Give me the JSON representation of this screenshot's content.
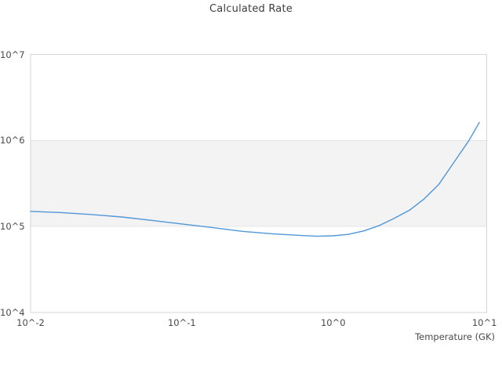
{
  "title": "Calculated Rate",
  "chart_data": {
    "type": "line",
    "title": "Calculated Rate",
    "xlabel": "Temperature (GK)",
    "ylabel": "",
    "x_scale": "log",
    "y_scale": "log",
    "xlim": [
      0.01,
      10.35
    ],
    "ylim": [
      10000,
      10000000
    ],
    "grid": "horizontal-decades",
    "legend": "none",
    "x_ticks": [
      {
        "value": 0.01,
        "label": "10^-2"
      },
      {
        "value": 0.1,
        "label": "10^-1"
      },
      {
        "value": 1,
        "label": "10^0"
      },
      {
        "value": 10,
        "label": "10^1"
      }
    ],
    "y_ticks": [
      {
        "value": 10000,
        "label": "10^4"
      },
      {
        "value": 100000,
        "label": "10^5"
      },
      {
        "value": 1000000,
        "label": "10^6"
      },
      {
        "value": 10000000,
        "label": "10^7"
      }
    ],
    "highlight_band": {
      "from": 100000,
      "to": 1000000,
      "fill": "#f3f3f3",
      "edge": "#e4e4e4"
    },
    "series": [
      {
        "name": "Calculated Rate",
        "color": "#4f97d9",
        "x": [
          0.01,
          0.016,
          0.025,
          0.04,
          0.063,
          0.1,
          0.16,
          0.25,
          0.4,
          0.63,
          0.79,
          1.0,
          1.26,
          1.6,
          2.0,
          2.5,
          3.2,
          4.0,
          5.0,
          6.3,
          7.9,
          9.25
        ],
        "y": [
          150000,
          145000,
          138000,
          129000,
          118000,
          107000,
          97000,
          88000,
          82000,
          78500,
          77000,
          78000,
          81000,
          89000,
          102000,
          123000,
          155000,
          210000,
          310000,
          560000,
          1000000,
          1620000
        ]
      }
    ]
  },
  "colors": {
    "plot_border": "#d6d6d6",
    "band_fill": "#f3f3f3",
    "band_edge": "#e4e4e4",
    "line": "#4f97d9",
    "text": "#4a4a4a",
    "title_text": "#3d3d3d",
    "background": "#ffffff"
  }
}
